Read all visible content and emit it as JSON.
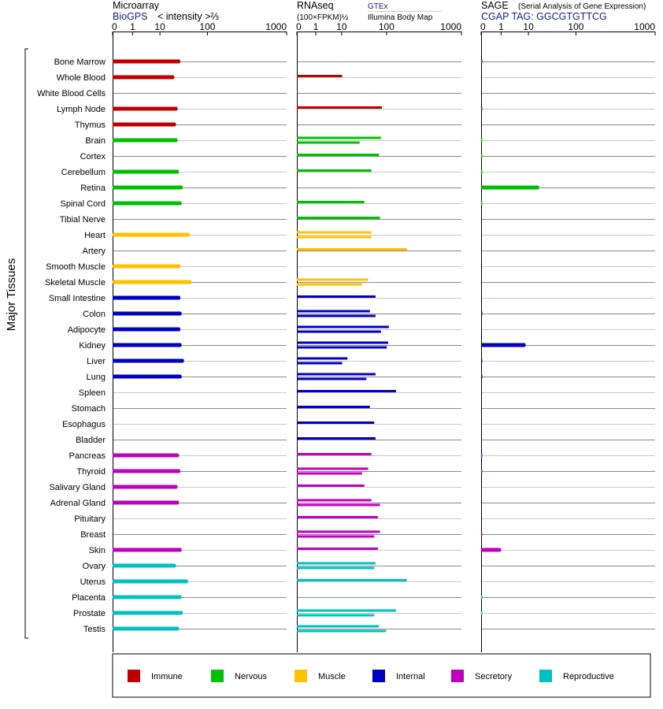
{
  "chart_data": {
    "type": "bar",
    "axis_title": "Major Tissues",
    "scale": "log",
    "xlim": [
      0,
      1000
    ],
    "ticks": [
      "0",
      "1",
      "10",
      "100",
      "1000"
    ],
    "panels": [
      {
        "id": "microarray",
        "title": "Microarray",
        "source": "BioGPS",
        "unit": "< intensity >⅔",
        "source_note": ""
      },
      {
        "id": "rnaseq",
        "title": "RNAseq",
        "source": "GTEx",
        "unit": "(100×FPKM)½",
        "source_note": "Illumina Body Map"
      },
      {
        "id": "sage",
        "title": "SAGE",
        "source": "CGAP TAG: GGCGTGTTCG",
        "unit": "",
        "source_note": "(Serial Analysis of Gene Expression)"
      }
    ],
    "groups": [
      {
        "name": "Immune",
        "color": "#c00000"
      },
      {
        "name": "Nervous",
        "color": "#00c000"
      },
      {
        "name": "Muscle",
        "color": "#ffc000"
      },
      {
        "name": "Internal",
        "color": "#0000c0"
      },
      {
        "name": "Secretory",
        "color": "#c000c0"
      },
      {
        "name": "Reproductive",
        "color": "#00c0c0"
      }
    ],
    "tissues": [
      {
        "name": "Bone Marrow",
        "group": 0,
        "microarray": 8.5,
        "rnaseq": [],
        "sage": 0.02
      },
      {
        "name": "Whole Blood",
        "group": 0,
        "microarray": 6.5,
        "rnaseq": [
          3.5
        ],
        "sage": 0
      },
      {
        "name": "White Blood Cells",
        "group": 0,
        "microarray": 0,
        "rnaseq": [
          0.05
        ],
        "sage": 0
      },
      {
        "name": "Lymph Node",
        "group": 0,
        "microarray": 7.5,
        "rnaseq": [
          23
        ],
        "sage": 0.02
      },
      {
        "name": "Thymus",
        "group": 0,
        "microarray": 7,
        "rnaseq": [],
        "sage": 0
      },
      {
        "name": "Brain",
        "group": 1,
        "microarray": 7.5,
        "rnaseq": [
          22,
          8
        ],
        "sage": 0.02
      },
      {
        "name": "Cortex",
        "group": 1,
        "microarray": 0,
        "rnaseq": [
          20
        ],
        "sage": 0.01
      },
      {
        "name": "Cerebellum",
        "group": 1,
        "microarray": 8,
        "rnaseq": [
          14
        ],
        "sage": 0.01
      },
      {
        "name": "Retina",
        "group": 1,
        "microarray": 9.5,
        "rnaseq": [],
        "sage": 5.5
      },
      {
        "name": "Spinal Cord",
        "group": 1,
        "microarray": 9,
        "rnaseq": [
          10
        ],
        "sage": 0.02
      },
      {
        "name": "Tibial Nerve",
        "group": 1,
        "microarray": 0,
        "rnaseq": [
          21
        ],
        "sage": 0
      },
      {
        "name": "Heart",
        "group": 2,
        "microarray": 13,
        "rnaseq": [
          14,
          14
        ],
        "sage": 0
      },
      {
        "name": "Artery",
        "group": 2,
        "microarray": 0,
        "rnaseq": [
          75
        ],
        "sage": 0
      },
      {
        "name": "Smooth Muscle",
        "group": 2,
        "microarray": 8.5,
        "rnaseq": [],
        "sage": 0
      },
      {
        "name": "Skeletal Muscle",
        "group": 2,
        "microarray": 14,
        "rnaseq": [
          12,
          9
        ],
        "sage": 0
      },
      {
        "name": "Small Intestine",
        "group": 3,
        "microarray": 8.5,
        "rnaseq": [
          17
        ],
        "sage": 0
      },
      {
        "name": "Colon",
        "group": 3,
        "microarray": 9,
        "rnaseq": [
          13,
          17
        ],
        "sage": 0.02
      },
      {
        "name": "Adipocyte",
        "group": 3,
        "microarray": 8.5,
        "rnaseq": [
          32,
          22
        ],
        "sage": 0
      },
      {
        "name": "Kidney",
        "group": 3,
        "microarray": 9,
        "rnaseq": [
          31,
          29
        ],
        "sage": 3
      },
      {
        "name": "Liver",
        "group": 3,
        "microarray": 10,
        "rnaseq": [
          4.5,
          3.5
        ],
        "sage": 0.02
      },
      {
        "name": "Lung",
        "group": 3,
        "microarray": 9,
        "rnaseq": [
          17,
          11
        ],
        "sage": 0.02
      },
      {
        "name": "Spleen",
        "group": 3,
        "microarray": 0,
        "rnaseq": [
          45
        ],
        "sage": 0
      },
      {
        "name": "Stomach",
        "group": 3,
        "microarray": 0,
        "rnaseq": [
          13
        ],
        "sage": 0
      },
      {
        "name": "Esophagus",
        "group": 3,
        "microarray": 0,
        "rnaseq": [
          16
        ],
        "sage": 0
      },
      {
        "name": "Bladder",
        "group": 3,
        "microarray": 0,
        "rnaseq": [
          17
        ],
        "sage": 0
      },
      {
        "name": "Pancreas",
        "group": 4,
        "microarray": 8,
        "rnaseq": [
          14
        ],
        "sage": 0.02
      },
      {
        "name": "Thyroid",
        "group": 4,
        "microarray": 8.5,
        "rnaseq": [
          12,
          9
        ],
        "sage": 0.02
      },
      {
        "name": "Salivary Gland",
        "group": 4,
        "microarray": 7.5,
        "rnaseq": [
          10
        ],
        "sage": 0
      },
      {
        "name": "Adrenal Gland",
        "group": 4,
        "microarray": 8,
        "rnaseq": [
          14,
          21
        ],
        "sage": 0
      },
      {
        "name": "Pituitary",
        "group": 4,
        "microarray": 0,
        "rnaseq": [
          19
        ],
        "sage": 0
      },
      {
        "name": "Breast",
        "group": 4,
        "microarray": 0,
        "rnaseq": [
          21,
          16
        ],
        "sage": 0.02
      },
      {
        "name": "Skin",
        "group": 4,
        "microarray": 9,
        "rnaseq": [
          19
        ],
        "sage": 1
      },
      {
        "name": "Ovary",
        "group": 5,
        "microarray": 7,
        "rnaseq": [
          17,
          16
        ],
        "sage": 0
      },
      {
        "name": "Uterus",
        "group": 5,
        "microarray": 12,
        "rnaseq": [
          75
        ],
        "sage": 0
      },
      {
        "name": "Placenta",
        "group": 5,
        "microarray": 9,
        "rnaseq": [],
        "sage": 0.02
      },
      {
        "name": "Prostate",
        "group": 5,
        "microarray": 9.5,
        "rnaseq": [
          45,
          16
        ],
        "sage": 0.02
      },
      {
        "name": "Testis",
        "group": 5,
        "microarray": 8,
        "rnaseq": [
          20,
          28
        ],
        "sage": 0
      }
    ]
  }
}
